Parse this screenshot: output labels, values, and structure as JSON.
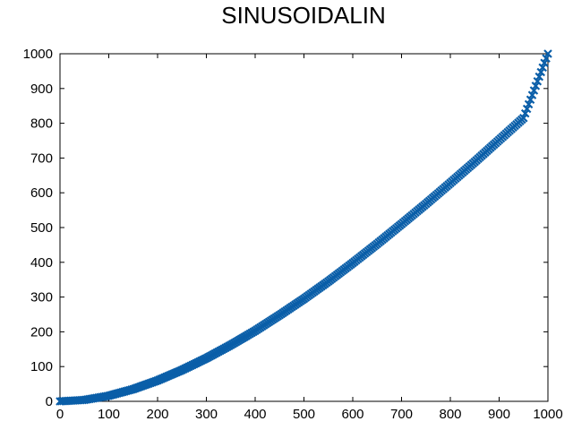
{
  "chart_data": {
    "type": "scatter",
    "title": "SINUSOIDALIN",
    "xlabel": "",
    "ylabel": "",
    "xlim": [
      0,
      1000
    ],
    "ylim": [
      0,
      1000
    ],
    "x_ticks": [
      "0",
      "100",
      "200",
      "300",
      "400",
      "500",
      "600",
      "700",
      "800",
      "900",
      "1000"
    ],
    "y_ticks": [
      "0",
      "100",
      "200",
      "300",
      "400",
      "500",
      "600",
      "700",
      "800",
      "900",
      "1000"
    ],
    "grid": false,
    "marker": "x",
    "color": "#0a5ea8",
    "series": [
      {
        "x": [
          0,
          50,
          100,
          150,
          200,
          250,
          300,
          350,
          400,
          450,
          500,
          550,
          600,
          650,
          700,
          750,
          800,
          850,
          900,
          950,
          1000
        ],
        "y": [
          0,
          4,
          16,
          35,
          60,
          90,
          124,
          162,
          203,
          248,
          295,
          345,
          398,
          453,
          510,
          568,
          628,
          689,
          752,
          815,
          1000
        ]
      }
    ]
  }
}
